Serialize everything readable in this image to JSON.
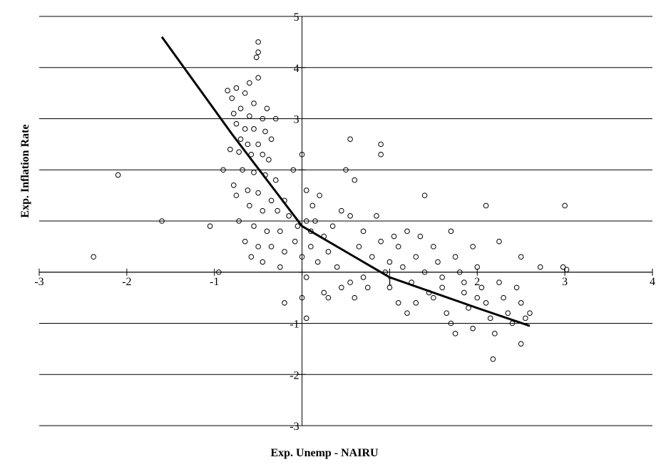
{
  "chart_data": {
    "type": "scatter",
    "xlabel": "Exp. Unemp - NAIRU",
    "ylabel": "Exp. Inflation Rate",
    "xlim": [
      -3,
      4
    ],
    "ylim": [
      -3,
      5
    ],
    "x_ticks": [
      -3,
      -2,
      -1,
      0,
      1,
      2,
      3,
      4
    ],
    "y_ticks": [
      -3,
      -2,
      -1,
      0,
      1,
      2,
      3,
      4,
      5
    ],
    "x_tick_labels": [
      "-3",
      "-2",
      "-1",
      "",
      "1",
      "2",
      "3",
      "4"
    ],
    "y_tick_labels": [
      "-3",
      "-2",
      "-1",
      "",
      "",
      "",
      "3",
      "4",
      "5"
    ],
    "grid": "horizontal",
    "marker": "open-circle",
    "series": [
      {
        "kind": "scatter",
        "points": [
          [
            -2.38,
            0.3
          ],
          [
            -2.1,
            1.9
          ],
          [
            -1.6,
            1.0
          ],
          [
            -1.05,
            0.9
          ],
          [
            -0.95,
            0.0
          ],
          [
            -0.5,
            4.5
          ],
          [
            -0.5,
            4.3
          ],
          [
            -0.52,
            4.2
          ],
          [
            -0.5,
            3.8
          ],
          [
            -0.6,
            3.7
          ],
          [
            -0.75,
            3.6
          ],
          [
            -0.85,
            3.55
          ],
          [
            -0.65,
            3.5
          ],
          [
            -0.8,
            3.4
          ],
          [
            -0.55,
            3.3
          ],
          [
            -0.7,
            3.2
          ],
          [
            -0.4,
            3.2
          ],
          [
            -0.78,
            3.1
          ],
          [
            -0.6,
            3.05
          ],
          [
            -0.45,
            3.0
          ],
          [
            -0.3,
            3.0
          ],
          [
            -0.75,
            2.9
          ],
          [
            -0.65,
            2.8
          ],
          [
            -0.55,
            2.8
          ],
          [
            -0.42,
            2.75
          ],
          [
            -0.35,
            2.6
          ],
          [
            -0.7,
            2.6
          ],
          [
            -0.62,
            2.5
          ],
          [
            -0.5,
            2.5
          ],
          [
            -0.82,
            2.4
          ],
          [
            -0.72,
            2.35
          ],
          [
            -0.58,
            2.3
          ],
          [
            -0.45,
            2.3
          ],
          [
            -0.38,
            2.2
          ],
          [
            -0.9,
            2.0
          ],
          [
            -0.68,
            2.0
          ],
          [
            -0.55,
            1.95
          ],
          [
            -0.42,
            1.9
          ],
          [
            -0.3,
            1.8
          ],
          [
            -0.78,
            1.7
          ],
          [
            -0.62,
            1.6
          ],
          [
            -0.5,
            1.55
          ],
          [
            -0.75,
            1.5
          ],
          [
            -0.35,
            1.4
          ],
          [
            -0.2,
            1.4
          ],
          [
            -0.6,
            1.3
          ],
          [
            -0.45,
            1.2
          ],
          [
            -0.28,
            1.2
          ],
          [
            -0.15,
            1.1
          ],
          [
            -0.72,
            1.0
          ],
          [
            -0.55,
            0.9
          ],
          [
            -0.4,
            0.8
          ],
          [
            -0.25,
            0.8
          ],
          [
            -0.65,
            0.6
          ],
          [
            -0.5,
            0.5
          ],
          [
            -0.35,
            0.5
          ],
          [
            -0.2,
            0.4
          ],
          [
            -0.45,
            0.2
          ],
          [
            -0.58,
            0.3
          ],
          [
            -0.08,
            0.6
          ],
          [
            -0.05,
            0.9
          ],
          [
            0.05,
            1.0
          ],
          [
            0.1,
            0.8
          ],
          [
            -0.1,
            2.0
          ],
          [
            0.0,
            2.3
          ],
          [
            0.05,
            1.6
          ],
          [
            0.12,
            1.3
          ],
          [
            0.2,
            1.5
          ],
          [
            0.15,
            1.0
          ],
          [
            0.25,
            0.7
          ],
          [
            0.1,
            0.5
          ],
          [
            0.3,
            0.4
          ],
          [
            0.0,
            0.3
          ],
          [
            0.18,
            0.2
          ],
          [
            0.05,
            -0.1
          ],
          [
            0.0,
            -0.5
          ],
          [
            0.05,
            -0.9
          ],
          [
            -0.2,
            -0.6
          ],
          [
            0.35,
            0.9
          ],
          [
            0.45,
            1.2
          ],
          [
            0.5,
            2.0
          ],
          [
            0.6,
            1.8
          ],
          [
            0.55,
            1.1
          ],
          [
            0.7,
            0.8
          ],
          [
            0.65,
            0.5
          ],
          [
            0.8,
            0.3
          ],
          [
            0.85,
            1.1
          ],
          [
            0.9,
            0.6
          ],
          [
            0.55,
            2.6
          ],
          [
            0.9,
            2.5
          ],
          [
            0.9,
            2.3
          ],
          [
            0.4,
            0.1
          ],
          [
            0.55,
            -0.2
          ],
          [
            0.75,
            -0.3
          ],
          [
            0.3,
            -0.5
          ],
          [
            0.6,
            -0.5
          ],
          [
            0.95,
            0.0
          ],
          [
            1.0,
            0.2
          ],
          [
            1.05,
            0.7
          ],
          [
            1.1,
            0.5
          ],
          [
            1.2,
            0.8
          ],
          [
            1.15,
            0.1
          ],
          [
            1.25,
            -0.2
          ],
          [
            1.3,
            0.3
          ],
          [
            1.35,
            0.7
          ],
          [
            1.4,
            0.0
          ],
          [
            1.45,
            -0.4
          ],
          [
            1.1,
            -0.6
          ],
          [
            1.2,
            -0.8
          ],
          [
            1.5,
            0.5
          ],
          [
            1.55,
            0.2
          ],
          [
            1.6,
            -0.1
          ],
          [
            1.5,
            -0.5
          ],
          [
            1.65,
            -0.8
          ],
          [
            1.7,
            -1.0
          ],
          [
            1.75,
            0.3
          ],
          [
            1.8,
            0.0
          ],
          [
            1.85,
            -0.4
          ],
          [
            1.9,
            -0.7
          ],
          [
            1.95,
            -1.1
          ],
          [
            1.75,
            -1.2
          ],
          [
            1.95,
            0.5
          ],
          [
            2.0,
            0.1
          ],
          [
            2.05,
            -0.3
          ],
          [
            2.1,
            -0.6
          ],
          [
            2.15,
            -0.9
          ],
          [
            2.2,
            -1.2
          ],
          [
            2.25,
            -0.2
          ],
          [
            2.3,
            -0.5
          ],
          [
            2.35,
            -0.8
          ],
          [
            2.45,
            -0.3
          ],
          [
            2.5,
            -0.6
          ],
          [
            2.55,
            -0.9
          ],
          [
            2.5,
            -1.4
          ],
          [
            2.6,
            -0.8
          ],
          [
            2.18,
            -1.7
          ],
          [
            2.1,
            1.3
          ],
          [
            2.25,
            0.6
          ],
          [
            2.5,
            0.3
          ],
          [
            2.72,
            0.1
          ],
          [
            2.98,
            0.1
          ],
          [
            3.02,
            0.05
          ],
          [
            3.0,
            1.3
          ],
          [
            1.7,
            0.8
          ],
          [
            1.4,
            1.5
          ],
          [
            -0.25,
            0.1
          ],
          [
            0.25,
            -0.4
          ],
          [
            0.45,
            -0.3
          ],
          [
            0.7,
            -0.1
          ],
          [
            1.0,
            -0.3
          ],
          [
            1.3,
            -0.6
          ],
          [
            1.6,
            -0.3
          ],
          [
            1.85,
            -0.2
          ],
          [
            2.0,
            -0.5
          ],
          [
            2.4,
            -1.0
          ]
        ]
      },
      {
        "kind": "line",
        "points": [
          [
            -1.6,
            4.6
          ],
          [
            -0.8,
            2.7
          ],
          [
            0.0,
            0.9
          ],
          [
            1.0,
            -0.1
          ],
          [
            2.0,
            -0.7
          ],
          [
            2.6,
            -1.05
          ]
        ]
      }
    ]
  }
}
